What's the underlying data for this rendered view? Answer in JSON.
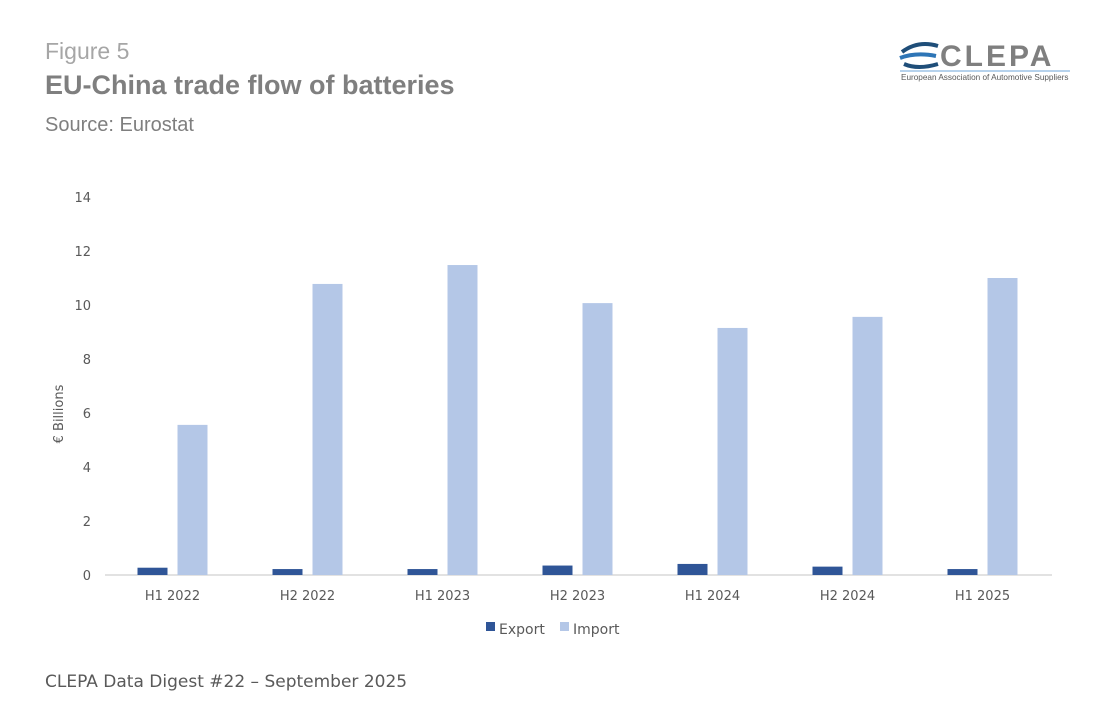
{
  "header": {
    "figure_label": "Figure 5",
    "title": "EU-China trade flow of batteries",
    "source": "Source: Eurostat"
  },
  "logo": {
    "name": "CLEPA",
    "tagline": "European Association of Automotive Suppliers"
  },
  "footer": "CLEPA Data Digest #22 – September 2025",
  "chart_data": {
    "type": "bar",
    "title": "EU-China trade flow of batteries",
    "xlabel": "",
    "ylabel": "€ Billions",
    "ylim": [
      0,
      14
    ],
    "yticks": [
      0,
      2,
      4,
      6,
      8,
      10,
      12,
      14
    ],
    "grid": false,
    "legend": "bottom",
    "categories": [
      "H1 2022",
      "H2 2022",
      "H1 2023",
      "H2 2023",
      "H1 2024",
      "H2 2024",
      "H1 2025"
    ],
    "series": [
      {
        "name": "Export",
        "color": "#2f5597",
        "values": [
          0.27,
          0.22,
          0.22,
          0.35,
          0.41,
          0.31,
          0.22
        ]
      },
      {
        "name": "Import",
        "color": "#b4c7e7",
        "values": [
          5.56,
          10.78,
          11.48,
          10.07,
          9.15,
          9.56,
          11.0
        ]
      }
    ]
  }
}
